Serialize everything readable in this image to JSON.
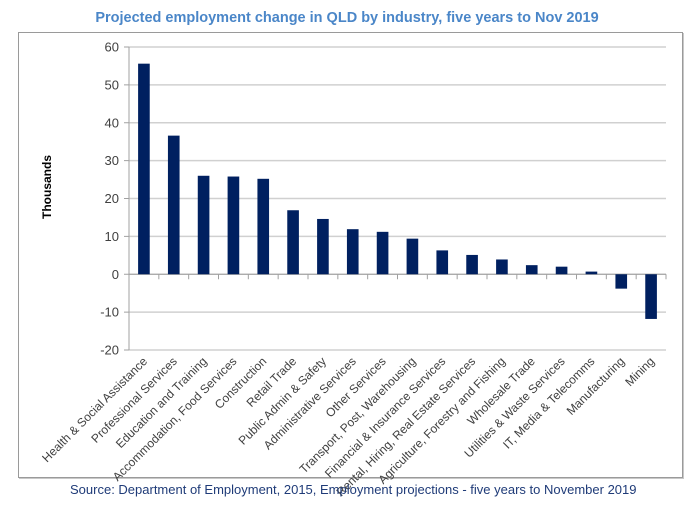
{
  "chart_data": {
    "type": "bar",
    "title": "Projected employment change in QLD by industry, five years to Nov 2019",
    "xlabel": "",
    "ylabel": "Thousands",
    "ylim": [
      -20,
      60
    ],
    "yticks": [
      60,
      50,
      40,
      30,
      20,
      10,
      0,
      -10,
      -20
    ],
    "grid": true,
    "legend": "none",
    "bar_color": "#002060",
    "categories": [
      "Health & Social Assistance",
      "Professional Services",
      "Education and Training",
      "Accommodation, Food Services",
      "Construction",
      "Retail Trade",
      "Public Admin & Safety",
      "Administrative Services",
      "Other Services",
      "Transport, Post, Warehousing",
      "Financial & Insurance Services",
      "Rental, Hiring, Real Estate Services",
      "Agriculture, Forestry and Fishing",
      "Wholesale Trade",
      "Utilities & Waste Services",
      "IT, Media & Telecomms",
      "Manufacturing",
      "Mining"
    ],
    "values": [
      55.6,
      36.6,
      26.0,
      25.8,
      25.2,
      16.9,
      14.6,
      11.9,
      11.2,
      9.4,
      6.3,
      5.1,
      3.9,
      2.4,
      2.0,
      0.7,
      -3.8,
      -11.8
    ],
    "source": "Source: Department of Employment, 2015, Employment projections - five years to November 2019"
  }
}
